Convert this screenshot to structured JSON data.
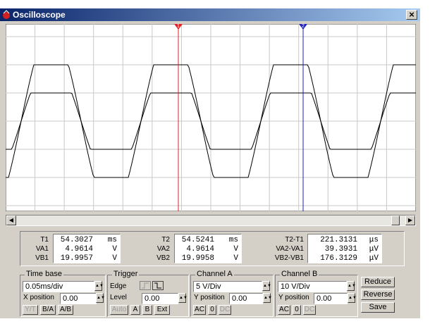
{
  "window": {
    "title": "Oscilloscope",
    "close": "×"
  },
  "cursors": [
    {
      "label": "1"
    },
    {
      "label": "2"
    }
  ],
  "readouts": [
    {
      "rows": [
        {
          "label": "T1",
          "value": "54.3027",
          "unit": "ms"
        },
        {
          "label": "VA1",
          "value": "4.9614",
          "unit": "V"
        },
        {
          "label": "VB1",
          "value": "19.9957",
          "unit": "V"
        }
      ]
    },
    {
      "rows": [
        {
          "label": "T2",
          "value": "54.5241",
          "unit": "ms"
        },
        {
          "label": "VA2",
          "value": "4.9614",
          "unit": "V"
        },
        {
          "label": "VB2",
          "value": "19.9958",
          "unit": "V"
        }
      ]
    },
    {
      "rows": [
        {
          "label": "T2-T1",
          "value": "221.3131",
          "unit": "μs"
        },
        {
          "label": "VA2-VA1",
          "value": "39.3931",
          "unit": "μV"
        },
        {
          "label": "VB2-VB1",
          "value": "176.3129",
          "unit": "μV"
        }
      ]
    }
  ],
  "time_base": {
    "title": "Time base",
    "scale": "0.05ms/div",
    "position_label": "X position",
    "position": "0.00",
    "buttons": [
      "Y/T",
      "B/A",
      "A/B"
    ]
  },
  "trigger": {
    "title": "Trigger",
    "edge_label": "Edge",
    "level_label": "Level",
    "level": "0.00",
    "buttons": [
      "Auto",
      "A",
      "B",
      "Ext"
    ]
  },
  "channel_a": {
    "title": "Channel A",
    "scale": "5 V/Div",
    "position_label": "Y position",
    "position": "0.00",
    "buttons": [
      "AC",
      "0",
      "DC"
    ]
  },
  "channel_b": {
    "title": "Channel B",
    "scale": "10 V/Div",
    "position_label": "Y position",
    "position": "0.00",
    "buttons": [
      "AC",
      "0",
      "DC"
    ]
  },
  "actions": [
    "Reduce",
    "Reverse",
    "Save"
  ]
}
